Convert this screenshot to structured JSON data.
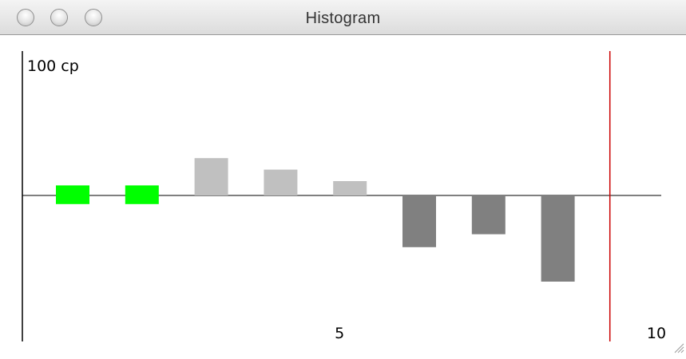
{
  "window": {
    "title": "Histogram"
  },
  "chart_data": {
    "type": "bar",
    "title": "",
    "ylabel": "100 cp",
    "xlabel": "",
    "x": [
      1,
      2,
      3,
      4,
      5,
      6,
      7,
      8
    ],
    "x_tick_labels": [
      {
        "value": 5,
        "label": "5"
      },
      {
        "value": 10,
        "label": "10"
      }
    ],
    "xlim": [
      0.5,
      10
    ],
    "ylim": [
      -100,
      100
    ],
    "bars": [
      {
        "x": 1,
        "low": -6,
        "high": 7,
        "color": "#00ff00"
      },
      {
        "x": 2,
        "low": -6,
        "high": 7,
        "color": "#00ff00"
      },
      {
        "x": 3,
        "low": 0,
        "high": 26,
        "color": "#c0c0c0"
      },
      {
        "x": 4,
        "low": 0,
        "high": 18,
        "color": "#c0c0c0"
      },
      {
        "x": 5,
        "low": 0,
        "high": 10,
        "color": "#c0c0c0"
      },
      {
        "x": 6,
        "low": -36,
        "high": 0,
        "color": "#808080"
      },
      {
        "x": 7,
        "low": -27,
        "high": 0,
        "color": "#808080"
      },
      {
        "x": 8,
        "low": -60,
        "high": 0,
        "color": "#808080"
      }
    ],
    "marker_line": {
      "x": 8.75,
      "color": "#cc0000"
    },
    "zero_line": true,
    "grid": false,
    "legend": "none"
  }
}
